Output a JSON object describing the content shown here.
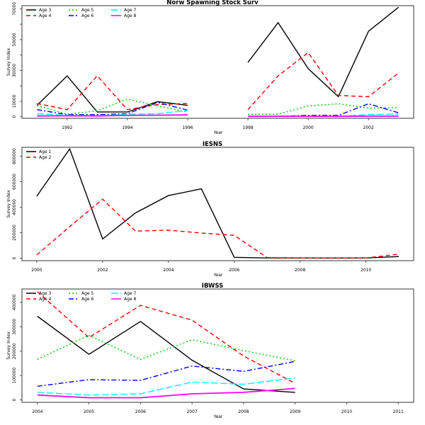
{
  "chart_data": [
    {
      "type": "line",
      "title": "Norw Spawning Stock Surv",
      "xlabel": "Year",
      "ylabel": "Survey Index",
      "xlim": [
        1990.5,
        2003.5
      ],
      "ylim": [
        -1000,
        72000
      ],
      "x_ticks": [
        1992,
        1994,
        1996,
        1998,
        2000,
        2002
      ],
      "y_ticks": [
        0,
        10000,
        20000,
        30000,
        40000,
        50000,
        60000,
        70000
      ],
      "y_tick_labels": [
        "0",
        "10000",
        "",
        "30000",
        "",
        "50000",
        "",
        "70000"
      ],
      "legend": "top-left",
      "x": [
        1991,
        1992,
        1993,
        1994,
        1995,
        1996,
        1997,
        1998,
        1999,
        2000,
        2001,
        2002,
        2003
      ],
      "series": [
        {
          "name": "Age 3",
          "color": "#000000",
          "values": [
            7400,
            26500,
            3100,
            3100,
            9800,
            7400,
            null,
            35200,
            61000,
            31200,
            13000,
            55400,
            71000
          ]
        },
        {
          "name": "Age 4",
          "color": "#ff0000",
          "values": [
            8600,
            4600,
            26500,
            4600,
            7900,
            8600,
            null,
            4600,
            26500,
            41600,
            13800,
            13000,
            28400
          ]
        },
        {
          "name": "Age 5",
          "color": "#00cc00",
          "values": [
            7400,
            1600,
            3800,
            11400,
            7100,
            3000,
            null,
            1600,
            1600,
            7000,
            8400,
            5500,
            6000
          ]
        },
        {
          "name": "Age 6",
          "color": "#0000ff",
          "values": [
            4600,
            1400,
            1400,
            2000,
            9300,
            4300,
            null,
            300,
            300,
            900,
            900,
            8400,
            2600
          ]
        },
        {
          "name": "Age 7",
          "color": "#00ffff",
          "values": [
            2000,
            1000,
            700,
            1600,
            2000,
            4000,
            null,
            300,
            300,
            300,
            300,
            1400,
            1800
          ]
        },
        {
          "name": "Age 8",
          "color": "#ff00ff",
          "values": [
            500,
            600,
            500,
            900,
            1000,
            1200,
            null,
            300,
            300,
            300,
            300,
            400,
            400
          ]
        }
      ]
    },
    {
      "type": "line",
      "title": "IESNS",
      "xlabel": "Year",
      "ylabel": "Survey Index",
      "xlim": [
        1999.55,
        2011.45
      ],
      "ylim": [
        -20000,
        870000
      ],
      "x_ticks": [
        2000,
        2002,
        2004,
        2006,
        2008,
        2010
      ],
      "y_ticks": [
        0,
        200000,
        400000,
        600000,
        800000
      ],
      "y_tick_labels": [
        "0",
        "200000",
        "400000",
        "600000",
        "800000"
      ],
      "legend": "top-left",
      "x": [
        2000,
        2001,
        2002,
        2003,
        2004,
        2005,
        2006,
        2007,
        2008,
        2009,
        2010,
        2011
      ],
      "series": [
        {
          "name": "Age 1",
          "color": "#000000",
          "values": [
            486000,
            858000,
            150000,
            355000,
            491000,
            544000,
            6000,
            1000,
            1000,
            500,
            1000,
            12000
          ]
        },
        {
          "name": "Age 2",
          "color": "#ff0000",
          "values": [
            25000,
            247000,
            463000,
            212000,
            220000,
            197000,
            179000,
            4000,
            1000,
            1000,
            1000,
            31000
          ]
        }
      ]
    },
    {
      "type": "line",
      "title": "IBWSS",
      "xlabel": "Year",
      "ylabel": "Survey Index",
      "xlim": [
        2003.7,
        2011.3
      ],
      "ylim": [
        -10000,
        455000
      ],
      "x_ticks": [
        2004,
        2005,
        2006,
        2007,
        2008,
        2009,
        2010,
        2011
      ],
      "y_ticks": [
        0,
        100000,
        200000,
        300000,
        400000
      ],
      "y_tick_labels": [
        "0",
        "100000",
        "200000",
        "300000",
        "400000"
      ],
      "legend": "top-left",
      "x": [
        2004,
        2005,
        2006,
        2007,
        2008,
        2009
      ],
      "series": [
        {
          "name": "Age 3",
          "color": "#000000",
          "values": [
            343000,
            187000,
            322000,
            163000,
            45000,
            31000
          ]
        },
        {
          "name": "Age 4",
          "color": "#ff0000",
          "values": [
            444000,
            256000,
            388000,
            327000,
            180000,
            68000
          ]
        },
        {
          "name": "Age 5",
          "color": "#00cc00",
          "values": [
            166000,
            265000,
            166000,
            247000,
            202000,
            161000
          ]
        },
        {
          "name": "Age 6",
          "color": "#0000ff",
          "values": [
            56000,
            83000,
            80000,
            139000,
            117000,
            158000
          ]
        },
        {
          "name": "Age 7",
          "color": "#00ffff",
          "values": [
            31000,
            20000,
            25000,
            73000,
            64000,
            90000
          ]
        },
        {
          "name": "Age 8",
          "color": "#ff00ff",
          "values": [
            20000,
            9000,
            9000,
            25000,
            31000,
            47000
          ]
        }
      ]
    }
  ]
}
